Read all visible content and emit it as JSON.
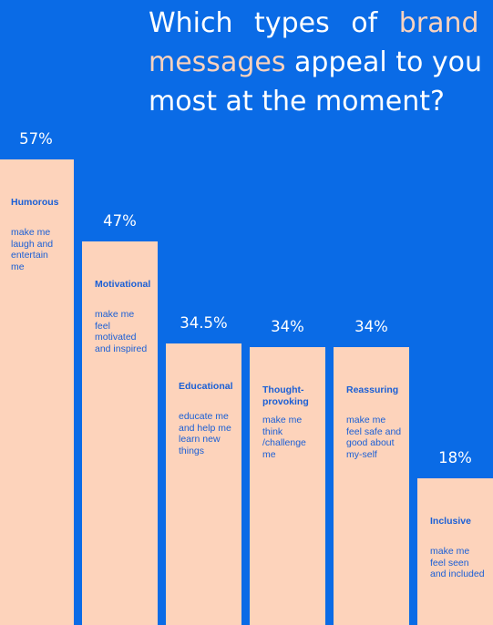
{
  "header": {
    "title_part1": "Which types of",
    "title_hl1": "brand",
    "title_hl2": "messages",
    "title_part2": "appeal to you",
    "title_line3": "most at the moment?"
  },
  "colors": {
    "background": "#0A6BE6",
    "bar": "#FDD3BB",
    "bar_text": "#1A5FD6",
    "highlight": "#F9D2BE",
    "label": "#FFFFFF"
  },
  "chart_data": {
    "type": "bar",
    "title": "Which types of brand messages appeal to you most at the moment?",
    "categories": [
      "Humorous",
      "Motivational",
      "Educational",
      "Thought-provoking",
      "Reassuring",
      "Inclusive"
    ],
    "descriptions": [
      "make me laugh and entertain me",
      "make me feel motivated and inspired",
      "educate me and help me learn new things",
      "make me think /challenge me",
      "make me feel safe and good about my-self",
      "make me feel seen and included"
    ],
    "values": [
      57,
      47,
      34.5,
      34,
      34,
      18
    ],
    "value_labels": [
      "57%",
      "47%",
      "34.5%",
      "34%",
      "34%",
      "18%"
    ],
    "unit": "%",
    "ylim": [
      0,
      57
    ],
    "grid": false,
    "legend": "none"
  }
}
